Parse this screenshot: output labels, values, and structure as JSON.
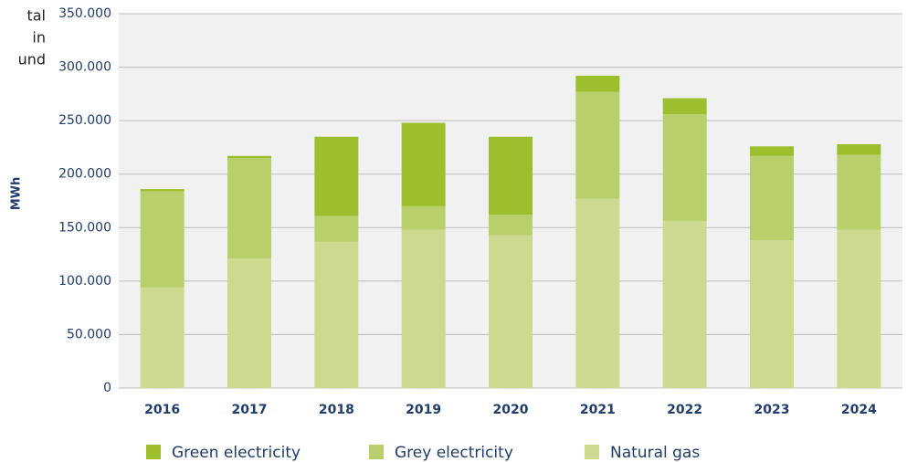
{
  "chart_data": {
    "type": "stacked_bar",
    "annotation_lines": [
      "tal",
      "in",
      "und"
    ],
    "y_label": "MWh",
    "categories": [
      "2016",
      "2017",
      "2018",
      "2019",
      "2020",
      "2021",
      "2022",
      "2023",
      "2024"
    ],
    "series": [
      {
        "name": "Green electricity",
        "color": "#9dbf2e",
        "values": [
          2000,
          2000,
          74000,
          78000,
          73000,
          15000,
          15000,
          9000,
          10000
        ]
      },
      {
        "name": "Grey electricity",
        "color": "#b8cf6b",
        "values": [
          90000,
          94000,
          24000,
          22000,
          19000,
          100000,
          100000,
          79000,
          70000
        ]
      },
      {
        "name": "Natural gas",
        "color": "#cbda8e",
        "values": [
          94000,
          121000,
          137000,
          148000,
          143000,
          177000,
          156000,
          138000,
          148000
        ]
      }
    ],
    "ylim": [
      0,
      350000
    ],
    "yticks": [
      0,
      {
        "value": 50000,
        "label": "50.000"
      },
      {
        "value": 100000,
        "label": "100.000"
      },
      {
        "value": 150000,
        "label": "150.000"
      },
      {
        "value": 200000,
        "label": "200.000"
      },
      {
        "value": 250000,
        "label": "250.000"
      },
      {
        "value": 300000,
        "label": "300.000"
      },
      {
        "value": 350000,
        "label": "350.000"
      }
    ],
    "grid": true,
    "legend": "bottom"
  }
}
